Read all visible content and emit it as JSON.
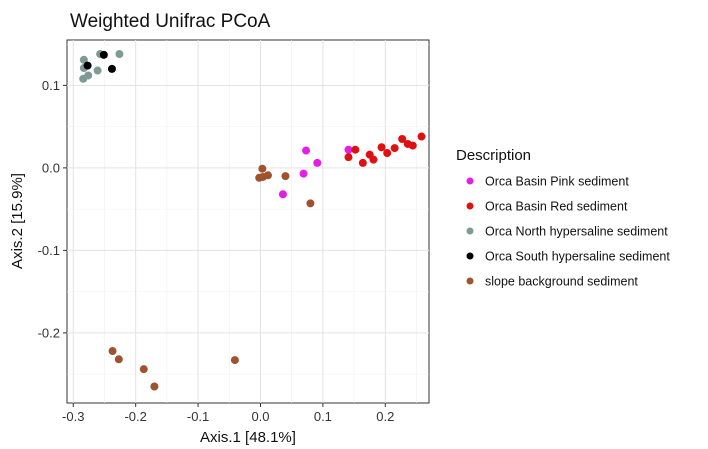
{
  "chart_data": {
    "type": "scatter",
    "title": "Weighted Unifrac PCoA",
    "xlabel": "Axis.1   [48.1%]",
    "ylabel": "Axis.2   [15.9%]",
    "xlim": [
      -0.31,
      0.27
    ],
    "ylim": [
      -0.285,
      0.155
    ],
    "x_ticks": [
      -0.3,
      -0.2,
      -0.1,
      0.0,
      0.1,
      0.2
    ],
    "x_tick_labels": [
      "-0.3",
      "-0.2",
      "-0.1",
      "0.0",
      "0.1",
      "0.2"
    ],
    "y_ticks": [
      -0.2,
      -0.1,
      0.0,
      0.1
    ],
    "y_tick_labels": [
      "-0.2",
      "-0.1",
      "0.0",
      "0.1"
    ],
    "grid": true,
    "legend": {
      "title": "Description",
      "position": "right"
    },
    "series": [
      {
        "name": "Orca Basin Pink sediment",
        "color": "#e41ee4",
        "points": [
          [
            0.073,
            0.021
          ],
          [
            0.069,
            -0.007
          ],
          [
            0.091,
            0.006
          ],
          [
            0.141,
            0.022
          ],
          [
            0.036,
            -0.032
          ]
        ]
      },
      {
        "name": "Orca Basin Red sediment",
        "color": "#e01010",
        "points": [
          [
            0.141,
            0.013
          ],
          [
            0.152,
            0.022
          ],
          [
            0.164,
            0.006
          ],
          [
            0.175,
            0.016
          ],
          [
            0.181,
            0.01
          ],
          [
            0.194,
            0.025
          ],
          [
            0.203,
            0.018
          ],
          [
            0.215,
            0.024
          ],
          [
            0.227,
            0.035
          ],
          [
            0.236,
            0.029
          ],
          [
            0.244,
            0.027
          ],
          [
            0.258,
            0.038
          ]
        ]
      },
      {
        "name": "Orca North hypersaline sediment",
        "color": "#7f9a95",
        "points": [
          [
            -0.283,
            0.131
          ],
          [
            -0.284,
            0.108
          ],
          [
            -0.276,
            0.112
          ],
          [
            -0.261,
            0.118
          ],
          [
            -0.257,
            0.138
          ],
          [
            -0.226,
            0.138
          ],
          [
            -0.283,
            0.121
          ]
        ]
      },
      {
        "name": "Orca South hypersaline sediment",
        "color": "#000000",
        "points": [
          [
            -0.277,
            0.124
          ],
          [
            -0.251,
            0.137
          ],
          [
            -0.238,
            0.12
          ]
        ]
      },
      {
        "name": "slope background sediment",
        "color": "#a0522d",
        "points": [
          [
            0.003,
            -0.001
          ],
          [
            0.004,
            -0.011
          ],
          [
            0.012,
            -0.009
          ],
          [
            -0.002,
            -0.012
          ],
          [
            0.04,
            -0.01
          ],
          [
            0.08,
            -0.043
          ],
          [
            -0.237,
            -0.222
          ],
          [
            -0.227,
            -0.232
          ],
          [
            -0.187,
            -0.244
          ],
          [
            -0.17,
            -0.265
          ],
          [
            -0.041,
            -0.233
          ]
        ]
      }
    ]
  }
}
